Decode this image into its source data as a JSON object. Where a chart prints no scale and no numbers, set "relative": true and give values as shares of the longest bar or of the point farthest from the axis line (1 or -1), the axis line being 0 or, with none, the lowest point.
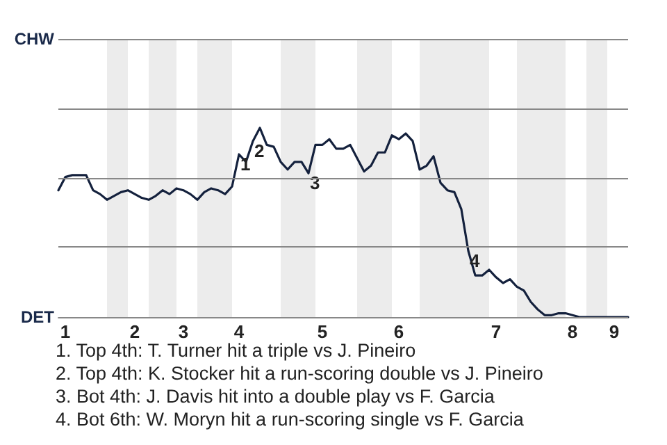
{
  "chart_data": {
    "type": "line",
    "relative": true,
    "categories": [
      null,
      "1",
      null,
      null,
      null,
      null,
      null,
      null,
      null,
      null,
      null,
      "2",
      null,
      null,
      null,
      null,
      null,
      null,
      "3",
      null,
      null,
      null,
      null,
      null,
      null,
      null,
      "4",
      null,
      null,
      null,
      null,
      null,
      null,
      null,
      null,
      null,
      null,
      null,
      "5",
      null,
      null,
      null,
      null,
      null,
      null,
      null,
      null,
      null,
      null,
      "6",
      null,
      null,
      null,
      null,
      null,
      null,
      null,
      null,
      null,
      null,
      null,
      null,
      null,
      "7",
      null,
      null,
      null,
      null,
      null,
      null,
      null,
      null,
      null,
      null,
      "8",
      null,
      null,
      null,
      null,
      null,
      "9",
      null,
      null
    ],
    "series": [
      {
        "color": "#14213d",
        "values": [
          0.67,
          0.74,
          0.75,
          0.75,
          0.75,
          0.67,
          0.65,
          0.62,
          0.64,
          0.66,
          0.67,
          0.65,
          0.63,
          0.62,
          0.64,
          0.67,
          0.65,
          0.68,
          0.67,
          0.65,
          0.62,
          0.66,
          0.68,
          0.67,
          0.65,
          0.69,
          0.86,
          0.82,
          0.93,
          1,
          0.91,
          0.9,
          0.82,
          0.78,
          0.82,
          0.82,
          0.76,
          0.91,
          0.91,
          0.94,
          0.89,
          0.89,
          0.91,
          0.84,
          0.77,
          0.8,
          0.87,
          0.87,
          0.96,
          0.94,
          0.97,
          0.93,
          0.78,
          0.8,
          0.85,
          0.71,
          0.67,
          0.66,
          0.57,
          0.35,
          0.22,
          0.22,
          0.25,
          0.21,
          0.18,
          0.2,
          0.16,
          0.14,
          0.08,
          0.04,
          0.01,
          0.01,
          0.02,
          0.02,
          0.01,
          0,
          0,
          0,
          0,
          0,
          0,
          0,
          0
        ]
      }
    ],
    "marker": "none",
    "line_style": "solid",
    "ref_lines": [
      {
        "axis": "y",
        "value": 0,
        "label": "DET",
        "color": "#888888"
      },
      {
        "axis": "y",
        "value": 0.37,
        "label": null,
        "color": "#888888"
      },
      {
        "axis": "y",
        "value": 0.73,
        "label": null,
        "color": "#888888"
      },
      {
        "axis": "y",
        "value": 1.1,
        "label": null,
        "color": "#888888"
      },
      {
        "axis": "y",
        "value": 1.47,
        "label": "CHW",
        "color": "#888888"
      }
    ],
    "annotations": [
      {
        "text": "1",
        "y": 0.86
      },
      {
        "text": "2",
        "y": 0.93
      },
      {
        "text": "3",
        "y": 0.76
      },
      {
        "text": "4",
        "y": 0.35
      },
      "1. Top 4th: T. Turner hit a triple vs J. Pineiro",
      "2. Top 4th: K. Stocker hit a run-scoring double vs J. Pineiro",
      "3. Bot 4th: J. Davis hit into a double play vs F. Garcia",
      "4. Bot 6th: W. Moryn hit a run-scoring single vs F. Garcia"
    ]
  }
}
